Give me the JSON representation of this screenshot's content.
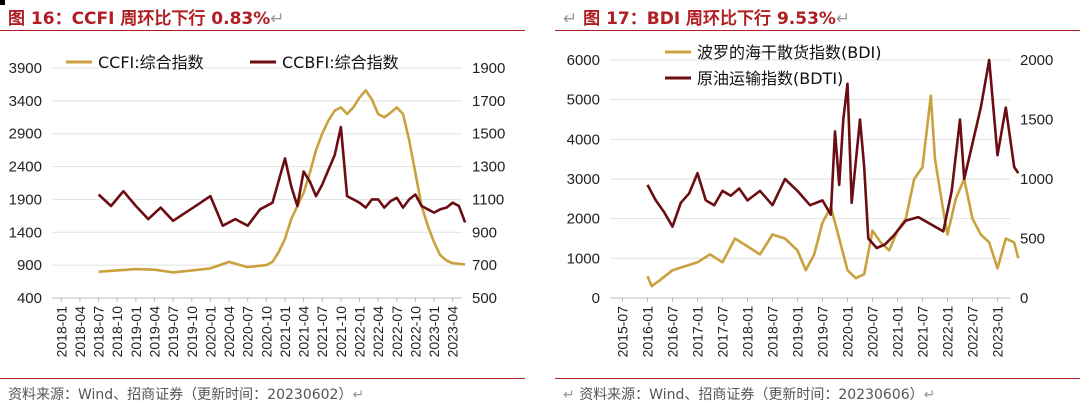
{
  "panels": [
    {
      "title": "图 16：CCFI 周环比下行 0.83%",
      "source": "资料来源：Wind、招商证券（更新时间：20230602）",
      "ret_mark": "↵"
    },
    {
      "title": "图 17：BDI 周环比下行 9.53%",
      "source": "资料来源：Wind、招商证券（更新时间：20230606）",
      "ret_mark": "↵"
    }
  ],
  "chart_data": [
    {
      "type": "line",
      "title": "",
      "xlabel": "",
      "ylabel": "",
      "x_ticks": [
        "2018-01",
        "2018-04",
        "2018-07",
        "2018-10",
        "2019-01",
        "2019-04",
        "2019-07",
        "2019-10",
        "2020-01",
        "2020-04",
        "2020-07",
        "2020-10",
        "2021-01",
        "2021-04",
        "2021-07",
        "2021-10",
        "2022-01",
        "2022-04",
        "2022-07",
        "2022-10",
        "2023-01",
        "2023-04"
      ],
      "y_left": {
        "lim": [
          400,
          3900
        ],
        "ticks": [
          400,
          900,
          1400,
          1900,
          2400,
          2900,
          3400,
          3900
        ]
      },
      "y_right": {
        "lim": [
          500,
          1900
        ],
        "ticks": [
          500,
          700,
          900,
          1100,
          1300,
          1500,
          1700,
          1900
        ]
      },
      "legend_position": "top",
      "grid": "horizontal",
      "series": [
        {
          "name": "CCFI:综合指数",
          "axis": "left",
          "color": "#c9a23f",
          "x": [
            "2018-07",
            "2018-10",
            "2019-01",
            "2019-04",
            "2019-07",
            "2019-10",
            "2020-01",
            "2020-04",
            "2020-07",
            "2020-10",
            "2020-11",
            "2020-12",
            "2021-01",
            "2021-02",
            "2021-03",
            "2021-04",
            "2021-05",
            "2021-06",
            "2021-07",
            "2021-08",
            "2021-09",
            "2021-10",
            "2021-11",
            "2021-12",
            "2022-01",
            "2022-02",
            "2022-03",
            "2022-04",
            "2022-05",
            "2022-06",
            "2022-07",
            "2022-08",
            "2022-09",
            "2022-10",
            "2022-11",
            "2022-12",
            "2023-01",
            "2023-02",
            "2023-03",
            "2023-04",
            "2023-05",
            "2023-06"
          ],
          "values": [
            800,
            820,
            840,
            830,
            790,
            820,
            850,
            950,
            870,
            900,
            950,
            1100,
            1300,
            1600,
            1800,
            2000,
            2300,
            2650,
            2900,
            3100,
            3250,
            3300,
            3200,
            3300,
            3450,
            3560,
            3420,
            3200,
            3150,
            3220,
            3300,
            3200,
            2800,
            2300,
            1800,
            1500,
            1250,
            1050,
            970,
            930,
            920,
            910
          ]
        },
        {
          "name": "CCBFI:综合指数",
          "axis": "right",
          "color": "#6b0e13",
          "x": [
            "2018-07",
            "2018-09",
            "2018-11",
            "2019-01",
            "2019-03",
            "2019-05",
            "2019-07",
            "2019-09",
            "2019-11",
            "2020-01",
            "2020-03",
            "2020-05",
            "2020-07",
            "2020-09",
            "2020-11",
            "2021-01",
            "2021-02",
            "2021-03",
            "2021-04",
            "2021-05",
            "2021-06",
            "2021-07",
            "2021-08",
            "2021-09",
            "2021-10",
            "2021-11",
            "2021-12",
            "2022-01",
            "2022-02",
            "2022-03",
            "2022-04",
            "2022-05",
            "2022-06",
            "2022-07",
            "2022-08",
            "2022-09",
            "2022-10",
            "2022-11",
            "2022-12",
            "2023-01",
            "2023-02",
            "2023-03",
            "2023-04",
            "2023-05",
            "2023-06"
          ],
          "values": [
            1130,
            1060,
            1150,
            1060,
            980,
            1050,
            970,
            1020,
            1070,
            1120,
            940,
            980,
            940,
            1040,
            1080,
            1350,
            1180,
            1060,
            1270,
            1210,
            1120,
            1190,
            1280,
            1370,
            1540,
            1120,
            1100,
            1080,
            1050,
            1100,
            1100,
            1050,
            1090,
            1110,
            1050,
            1100,
            1130,
            1060,
            1040,
            1020,
            1040,
            1050,
            1080,
            1060,
            960
          ]
        }
      ]
    },
    {
      "type": "line",
      "title": "",
      "xlabel": "",
      "ylabel": "",
      "x_ticks": [
        "2015-07",
        "2016-01",
        "2016-07",
        "2017-01",
        "2017-07",
        "2018-01",
        "2018-07",
        "2019-01",
        "2019-07",
        "2020-01",
        "2020-07",
        "2021-01",
        "2021-07",
        "2022-01",
        "2022-07",
        "2023-01"
      ],
      "y_left": {
        "lim": [
          0,
          6000
        ],
        "ticks": [
          0,
          1000,
          2000,
          3000,
          4000,
          5000,
          6000
        ]
      },
      "y_right": {
        "lim": [
          0,
          2000
        ],
        "ticks": [
          0,
          500,
          1000,
          1500,
          2000
        ]
      },
      "legend_position": "top",
      "grid": "horizontal",
      "series": [
        {
          "name": "波罗的海干散货指数(BDI)",
          "axis": "left",
          "color": "#c9a23f",
          "x": [
            "2016-01",
            "2016-02",
            "2016-04",
            "2016-07",
            "2016-10",
            "2017-01",
            "2017-04",
            "2017-07",
            "2017-10",
            "2018-01",
            "2018-04",
            "2018-07",
            "2018-10",
            "2019-01",
            "2019-03",
            "2019-05",
            "2019-07",
            "2019-09",
            "2019-11",
            "2020-01",
            "2020-03",
            "2020-05",
            "2020-07",
            "2020-09",
            "2020-11",
            "2021-01",
            "2021-03",
            "2021-05",
            "2021-07",
            "2021-09",
            "2021-10",
            "2021-12",
            "2022-01",
            "2022-03",
            "2022-05",
            "2022-07",
            "2022-09",
            "2022-11",
            "2023-01",
            "2023-03",
            "2023-05",
            "2023-06"
          ],
          "values": [
            550,
            300,
            450,
            700,
            800,
            900,
            1100,
            900,
            1500,
            1300,
            1100,
            1600,
            1500,
            1200,
            700,
            1100,
            1900,
            2300,
            1500,
            700,
            500,
            600,
            1700,
            1400,
            1200,
            1700,
            2000,
            3000,
            3300,
            5100,
            3500,
            2200,
            1600,
            2500,
            3000,
            2000,
            1600,
            1400,
            750,
            1500,
            1400,
            1000
          ]
        },
        {
          "name": "原油运输指数(BDTI)",
          "axis": "right",
          "color": "#6b0e13",
          "x": [
            "2016-01",
            "2016-03",
            "2016-05",
            "2016-07",
            "2016-09",
            "2016-11",
            "2017-01",
            "2017-03",
            "2017-05",
            "2017-07",
            "2017-09",
            "2017-11",
            "2018-01",
            "2018-04",
            "2018-07",
            "2018-10",
            "2019-01",
            "2019-04",
            "2019-07",
            "2019-09",
            "2019-10",
            "2019-11",
            "2019-12",
            "2020-01",
            "2020-02",
            "2020-04",
            "2020-05",
            "2020-06",
            "2020-08",
            "2020-10",
            "2020-12",
            "2021-03",
            "2021-06",
            "2021-09",
            "2021-12",
            "2022-02",
            "2022-04",
            "2022-05",
            "2022-07",
            "2022-09",
            "2022-11",
            "2023-01",
            "2023-03",
            "2023-05",
            "2023-06"
          ],
          "values": [
            950,
            820,
            720,
            600,
            800,
            880,
            1050,
            820,
            780,
            900,
            860,
            920,
            820,
            900,
            780,
            1000,
            900,
            780,
            820,
            700,
            1400,
            950,
            1500,
            1800,
            800,
            1500,
            1100,
            500,
            420,
            450,
            520,
            650,
            680,
            620,
            560,
            900,
            1500,
            1000,
            1300,
            1600,
            2000,
            1200,
            1600,
            1100,
            1050
          ]
        }
      ]
    }
  ]
}
